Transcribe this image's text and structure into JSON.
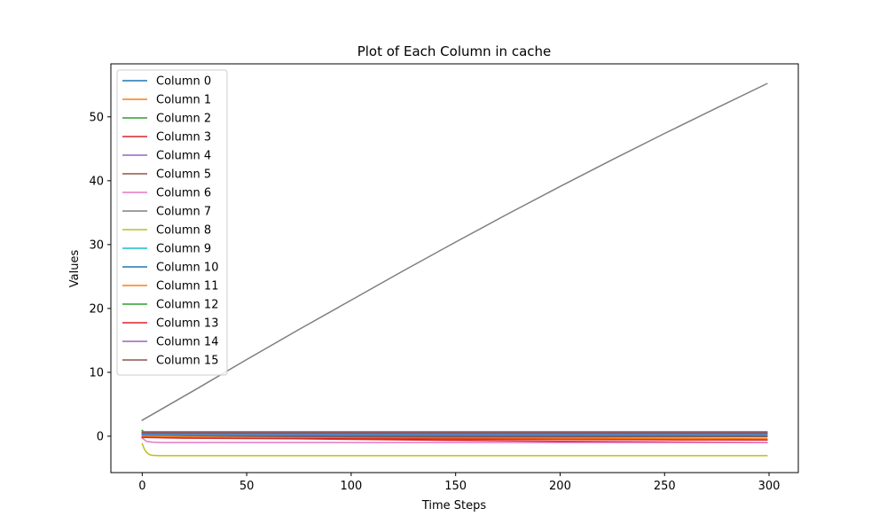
{
  "chart_data": {
    "type": "line",
    "title": "Plot of Each Column in cache",
    "xlabel": "Time Steps",
    "ylabel": "Values",
    "xlim": [
      -15,
      314
    ],
    "ylim": [
      -5.7,
      58.3
    ],
    "xticks": [
      0,
      50,
      100,
      150,
      200,
      250,
      300
    ],
    "yticks": [
      0,
      10,
      20,
      30,
      40,
      50
    ],
    "grid": false,
    "legend_position": "top-left",
    "series": [
      {
        "name": "Column 0",
        "color": "#1f77b4",
        "x": [
          0,
          2,
          5,
          10,
          20,
          50,
          100,
          150,
          200,
          250,
          299
        ],
        "y": [
          0.1,
          0.05,
          0.05,
          0.05,
          0.05,
          0.05,
          0.05,
          0.05,
          0.05,
          0.05,
          0.05
        ]
      },
      {
        "name": "Column 1",
        "color": "#ff7f0e",
        "x": [
          0,
          2,
          5,
          10,
          20,
          50,
          100,
          150,
          200,
          250,
          299
        ],
        "y": [
          -0.1,
          -0.1,
          -0.1,
          -0.1,
          -0.12,
          -0.15,
          -0.2,
          -0.25,
          -0.3,
          -0.35,
          -0.4
        ]
      },
      {
        "name": "Column 2",
        "color": "#2ca02c",
        "x": [
          0,
          2,
          5,
          10,
          20,
          50,
          100,
          150,
          200,
          250,
          299
        ],
        "y": [
          0.9,
          0.4,
          0.3,
          0.3,
          0.3,
          0.3,
          0.3,
          0.3,
          0.3,
          0.3,
          0.3
        ]
      },
      {
        "name": "Column 3",
        "color": "#d62728",
        "x": [
          0,
          2,
          5,
          10,
          20,
          50,
          100,
          150,
          200,
          250,
          299
        ],
        "y": [
          -0.1,
          -0.1,
          -0.12,
          -0.15,
          -0.2,
          -0.3,
          -0.5,
          -0.65,
          -0.8,
          -0.9,
          -1.0
        ]
      },
      {
        "name": "Column 4",
        "color": "#9467bd",
        "x": [
          0,
          2,
          5,
          10,
          20,
          50,
          100,
          150,
          200,
          250,
          299
        ],
        "y": [
          0.2,
          0.2,
          0.2,
          0.2,
          0.2,
          0.2,
          0.2,
          0.2,
          0.2,
          0.2,
          0.2
        ]
      },
      {
        "name": "Column 5",
        "color": "#8c564b",
        "x": [
          0,
          2,
          5,
          10,
          20,
          50,
          100,
          150,
          200,
          250,
          299
        ],
        "y": [
          0.0,
          -0.05,
          -0.1,
          -0.1,
          -0.1,
          -0.1,
          -0.1,
          -0.1,
          -0.1,
          -0.1,
          -0.1
        ]
      },
      {
        "name": "Column 6",
        "color": "#e377c2",
        "x": [
          0,
          2,
          5,
          10,
          20,
          50,
          100,
          150,
          200,
          250,
          299
        ],
        "y": [
          -0.3,
          -0.8,
          -0.95,
          -1.0,
          -1.0,
          -1.0,
          -1.0,
          -1.0,
          -1.0,
          -1.0,
          -1.0
        ]
      },
      {
        "name": "Column 7",
        "color": "#7f7f7f",
        "x": [
          0,
          25,
          50,
          75,
          100,
          125,
          150,
          175,
          200,
          225,
          250,
          275,
          299
        ],
        "y": [
          2.5,
          7.2,
          12.0,
          16.7,
          21.3,
          25.9,
          30.4,
          34.8,
          39.1,
          43.3,
          47.4,
          51.4,
          55.2
        ]
      },
      {
        "name": "Column 8",
        "color": "#bcbd22",
        "x": [
          0,
          1,
          2,
          3,
          4,
          5,
          8,
          20,
          50,
          100,
          150,
          200,
          250,
          299
        ],
        "y": [
          -1.2,
          -2.0,
          -2.5,
          -2.8,
          -2.95,
          -3.0,
          -3.05,
          -3.05,
          -3.05,
          -3.05,
          -3.05,
          -3.05,
          -3.05,
          -3.05
        ]
      },
      {
        "name": "Column 9",
        "color": "#17becf",
        "x": [
          0,
          2,
          5,
          10,
          20,
          50,
          100,
          150,
          200,
          250,
          299
        ],
        "y": [
          0.35,
          0.35,
          0.35,
          0.35,
          0.35,
          0.35,
          0.35,
          0.35,
          0.35,
          0.35,
          0.35
        ]
      },
      {
        "name": "Column 10",
        "color": "#1f77b4",
        "x": [
          0,
          2,
          5,
          10,
          20,
          50,
          100,
          150,
          200,
          250,
          299
        ],
        "y": [
          0.45,
          0.45,
          0.45,
          0.45,
          0.45,
          0.45,
          0.45,
          0.45,
          0.45,
          0.45,
          0.45
        ]
      },
      {
        "name": "Column 11",
        "color": "#ff7f0e",
        "x": [
          0,
          2,
          5,
          10,
          20,
          50,
          100,
          150,
          200,
          250,
          299
        ],
        "y": [
          0.0,
          0.0,
          -0.02,
          -0.05,
          -0.1,
          -0.2,
          -0.3,
          -0.4,
          -0.5,
          -0.55,
          -0.6
        ]
      },
      {
        "name": "Column 12",
        "color": "#2ca02c",
        "x": [
          0,
          2,
          5,
          10,
          20,
          50,
          100,
          150,
          200,
          250,
          299
        ],
        "y": [
          0.6,
          0.6,
          0.6,
          0.6,
          0.6,
          0.6,
          0.6,
          0.6,
          0.6,
          0.6,
          0.6
        ]
      },
      {
        "name": "Column 13",
        "color": "#d62728",
        "x": [
          0,
          2,
          5,
          10,
          20,
          50,
          100,
          150,
          200,
          250,
          299
        ],
        "y": [
          -0.2,
          -0.2,
          -0.22,
          -0.25,
          -0.3,
          -0.35,
          -0.4,
          -0.45,
          -0.5,
          -0.55,
          -0.6
        ]
      },
      {
        "name": "Column 14",
        "color": "#9467bd",
        "x": [
          0,
          2,
          5,
          10,
          20,
          50,
          100,
          150,
          200,
          250,
          299
        ],
        "y": [
          0.7,
          0.7,
          0.7,
          0.7,
          0.7,
          0.7,
          0.7,
          0.7,
          0.7,
          0.7,
          0.7
        ]
      },
      {
        "name": "Column 15",
        "color": "#8c564b",
        "x": [
          0,
          2,
          5,
          10,
          20,
          50,
          100,
          150,
          200,
          250,
          299
        ],
        "y": [
          0.55,
          0.55,
          0.55,
          0.55,
          0.55,
          0.55,
          0.55,
          0.55,
          0.55,
          0.55,
          0.55
        ]
      }
    ]
  }
}
